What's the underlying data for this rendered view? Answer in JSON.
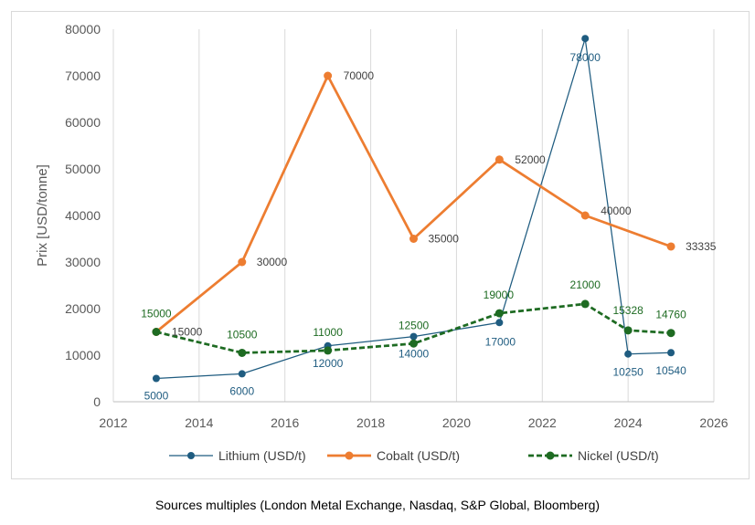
{
  "caption": "Sources multiples (London Metal Exchange, Nasdaq, S&P Global, Bloomberg)",
  "chart_data": {
    "type": "line",
    "ylabel": "Prix [USD/tonne]",
    "xlim": [
      2012,
      2026
    ],
    "ylim": [
      0,
      80000
    ],
    "x_ticks": [
      2012,
      2014,
      2016,
      2018,
      2020,
      2022,
      2024,
      2026
    ],
    "y_ticks": [
      0,
      10000,
      20000,
      30000,
      40000,
      50000,
      60000,
      70000,
      80000
    ],
    "grid": "vertical",
    "legend_position": "bottom",
    "series": [
      {
        "name": "Lithium (USD/t)",
        "color": "#1f5c80",
        "style": "solid-thin",
        "x": [
          2013,
          2015,
          2017,
          2019,
          2021,
          2023,
          2024,
          2025
        ],
        "y": [
          5000,
          6000,
          12000,
          14000,
          17000,
          78000,
          10250,
          10540
        ],
        "labels": [
          "5000",
          "6000",
          "12000",
          "14000",
          "17000",
          "78000",
          "10250",
          "10540"
        ]
      },
      {
        "name": "Cobalt (USD/t)",
        "color": "#ed7d31",
        "style": "solid-thick",
        "x": [
          2013,
          2015,
          2017,
          2019,
          2021,
          2023,
          2025
        ],
        "y": [
          15000,
          30000,
          70000,
          35000,
          52000,
          40000,
          33335
        ],
        "labels": [
          "15000",
          "30000",
          "70000",
          "35000",
          "52000",
          "40000",
          "33335"
        ]
      },
      {
        "name": "Nickel (USD/t)",
        "color": "#1e6b22",
        "style": "dashed",
        "x": [
          2013,
          2015,
          2017,
          2019,
          2021,
          2023,
          2024,
          2025
        ],
        "y": [
          15000,
          10500,
          11000,
          12500,
          19000,
          21000,
          15328,
          14760
        ],
        "labels": [
          "15000",
          "10500",
          "11000",
          "12500",
          "19000",
          "21000",
          "15328",
          "14760"
        ]
      }
    ]
  }
}
